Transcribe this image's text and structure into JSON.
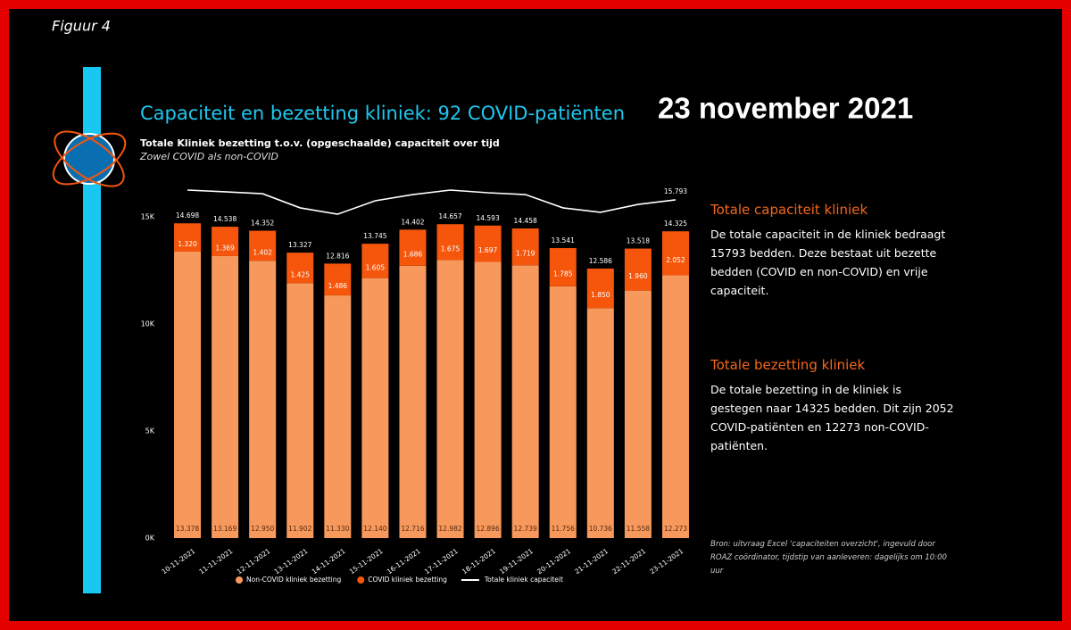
{
  "figure_label": "Figuur 4",
  "date_heading": "23 november 2021",
  "chart_data": {
    "type": "stacked_bar_line",
    "title": "Capaciteit en bezetting kliniek: 92 COVID-patiënten",
    "subtitle": "Totale Kliniek bezetting t.o.v. (opgeschaalde) capaciteit over tijd",
    "subtitle2": "Zowel COVID als non-COVID",
    "categories": [
      "10-11-2021",
      "11-11-2021",
      "12-11-2021",
      "13-11-2021",
      "14-11-2021",
      "15-11-2021",
      "16-11-2021",
      "17-11-2021",
      "18-11-2021",
      "19-11-2021",
      "20-11-2021",
      "21-11-2021",
      "22-11-2021",
      "23-11-2021"
    ],
    "series": [
      {
        "name": "Non-COVID kliniek bezetting",
        "color": "#f7995c",
        "values": [
          13378,
          13169,
          12950,
          11902,
          11330,
          12140,
          12716,
          12982,
          12896,
          12739,
          11756,
          10736,
          11558,
          12273
        ],
        "value_labels": [
          "13.378",
          "13.169",
          "12.950",
          "11.902",
          "11.330",
          "12.140",
          "12.716",
          "12.982",
          "12.896",
          "12.739",
          "11.756",
          "10.736",
          "11.558",
          "12.273"
        ]
      },
      {
        "name": "COVID kliniek bezetting",
        "color": "#f5560c",
        "values": [
          1320,
          1369,
          1402,
          1425,
          1486,
          1605,
          1686,
          1675,
          1697,
          1719,
          1785,
          1850,
          1960,
          2052
        ],
        "value_labels": [
          "1.320",
          "1.369",
          "1.402",
          "1.425",
          "1.486",
          "1.605",
          "1.686",
          "1.675",
          "1.697",
          "1.719",
          "1.785",
          "1.850",
          "1.960",
          "2.052"
        ]
      },
      {
        "name": "Totale kliniek capaciteit",
        "color": "#ffffff",
        "kind": "line",
        "values": [
          16250,
          16170,
          16080,
          15420,
          15125,
          15750,
          16040,
          16250,
          16125,
          16040,
          15420,
          15210,
          15580,
          15793
        ],
        "value_labels": [
          null,
          null,
          null,
          null,
          null,
          null,
          null,
          null,
          null,
          null,
          null,
          null,
          null,
          "15.793"
        ]
      }
    ],
    "totals": {
      "values": [
        14698,
        14538,
        14352,
        13327,
        12816,
        13745,
        14402,
        14657,
        14593,
        14458,
        13541,
        12586,
        13518,
        14325
      ],
      "value_labels": [
        "14.698",
        "14.538",
        "14.352",
        "13.327",
        "12.816",
        "13.745",
        "14.402",
        "14.657",
        "14.593",
        "14.458",
        "13.541",
        "12.586",
        "13.518",
        "14.325"
      ]
    },
    "ylim": [
      0,
      17000
    ],
    "yticks": [
      {
        "value": 0,
        "label": "0K"
      },
      {
        "value": 5000,
        "label": "5K"
      },
      {
        "value": 10000,
        "label": "10K"
      },
      {
        "value": 15000,
        "label": "15K"
      }
    ],
    "grid": false
  },
  "panels": [
    {
      "heading": "Totale capaciteit kliniek",
      "text": "De totale capaciteit in de kliniek bedraagt 15793 bedden. Deze bestaat uit bezette bedden (COVID en non-COVID) en vrije capaciteit."
    },
    {
      "heading": "Totale bezetting kliniek",
      "text": "De totale bezetting in de kliniek is gestegen naar 14325 bedden. Dit zijn 2052 COVID-patiënten en 12273 non-COVID-patiënten."
    }
  ],
  "source": "Bron: uitvraag Excel 'capaciteiten overzicht', ingevuld door ROAZ coördinator, tijdstip van aanleveren: dagelijks om 10:00 uur"
}
